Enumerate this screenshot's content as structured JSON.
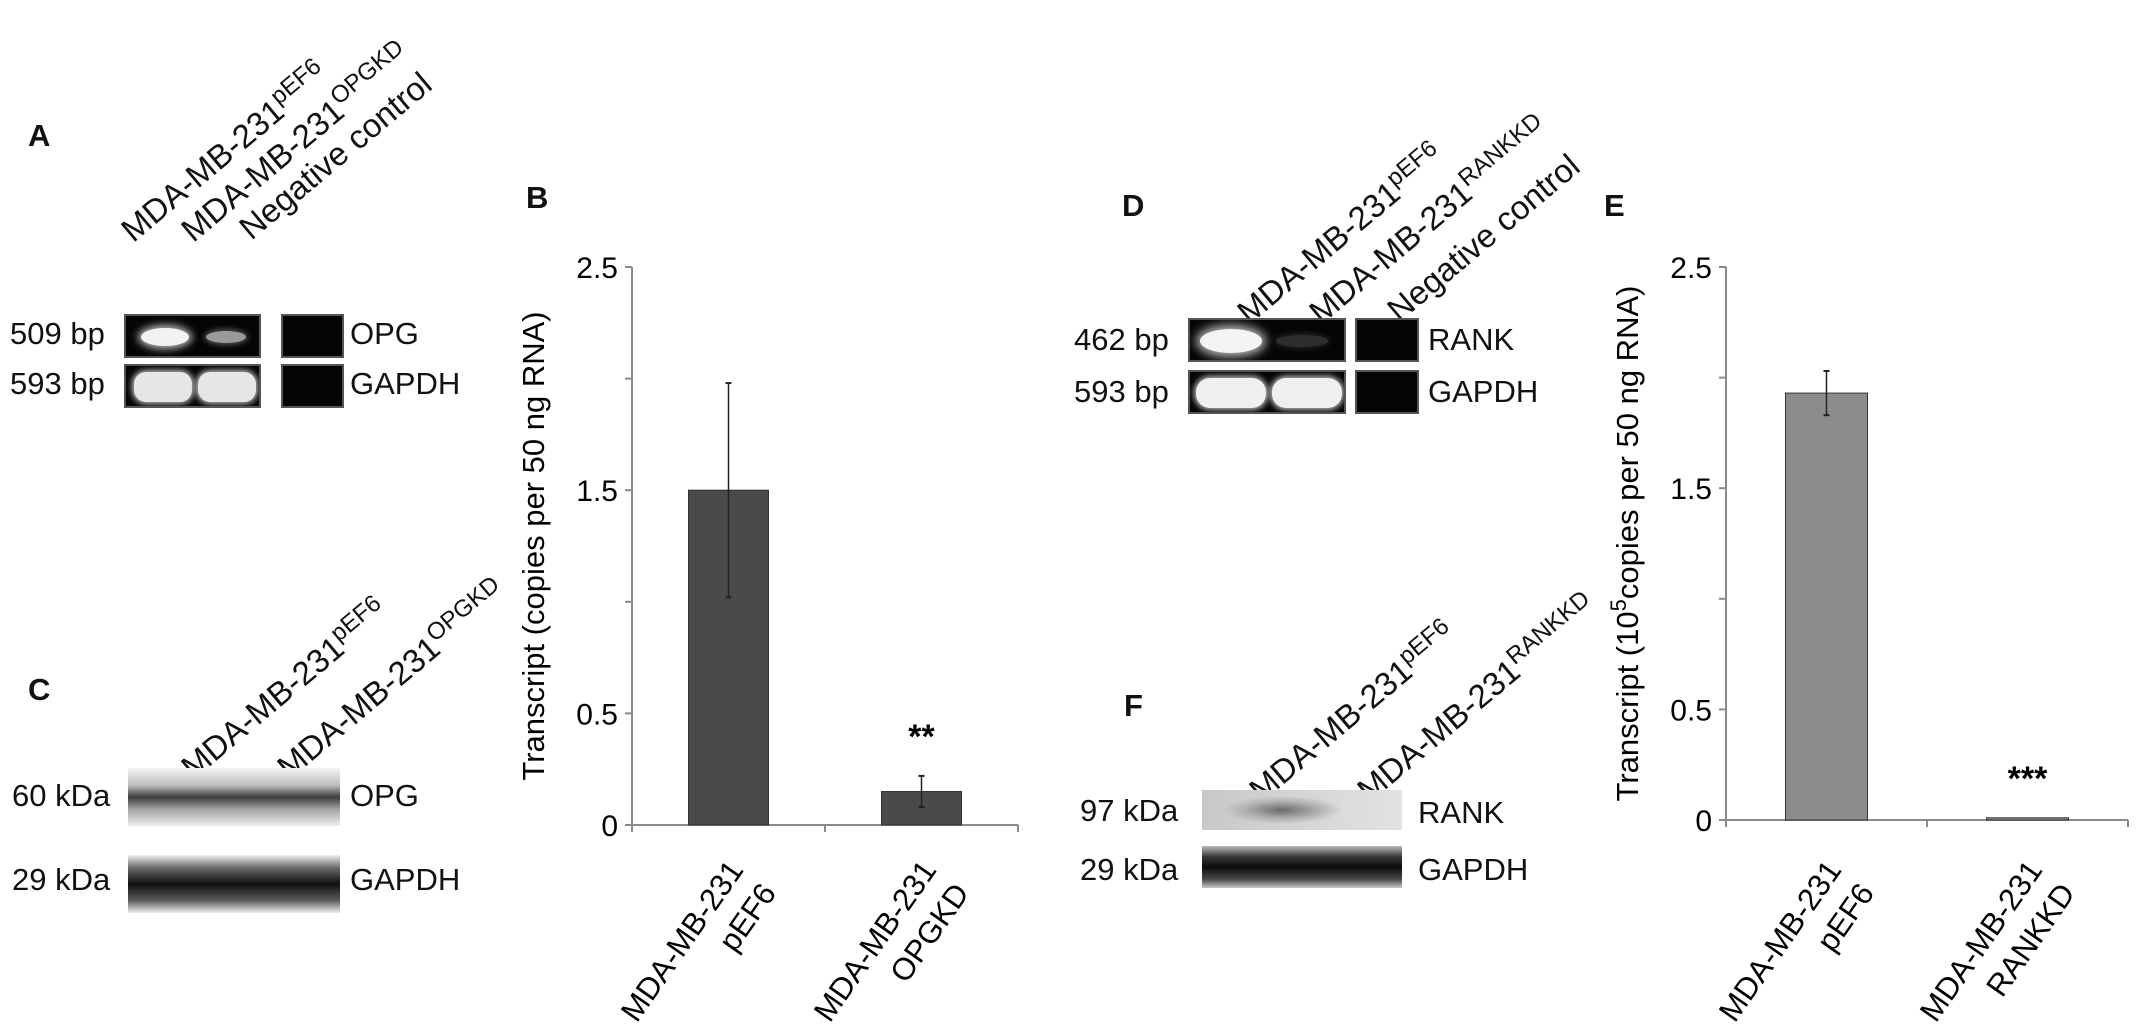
{
  "panels": {
    "A": {
      "label": "A",
      "lanes": [
        {
          "name": "MDA-MB-231",
          "sup": "pEF6"
        },
        {
          "name": "MDA-MB-231",
          "sup": "OPGKD"
        },
        {
          "name": "Negative  control",
          "sup": ""
        }
      ],
      "rows": [
        {
          "size": "509 bp",
          "gene": "OPG",
          "intensities": [
            0.9,
            0.35,
            0.05
          ]
        },
        {
          "size": "593 bp",
          "gene": "GAPDH",
          "intensities": [
            1.0,
            1.0,
            0.05
          ]
        }
      ]
    },
    "C": {
      "label": "C",
      "lanes": [
        {
          "name": "MDA-MB-231",
          "sup": "pEF6"
        },
        {
          "name": "MDA-MB-231",
          "sup": "OPGKD"
        }
      ],
      "rows": [
        {
          "size": "60 kDa",
          "gene": "OPG",
          "intensities": [
            0.75,
            0.6
          ]
        },
        {
          "size": "29 kDa",
          "gene": "GAPDH",
          "intensities": [
            0.95,
            0.95
          ]
        }
      ]
    },
    "D": {
      "label": "D",
      "lanes": [
        {
          "name": "MDA-MB-231",
          "sup": "pEF6"
        },
        {
          "name": "MDA-MB-231",
          "sup": "RANKKD"
        },
        {
          "name": "Negative  control",
          "sup": ""
        }
      ],
      "rows": [
        {
          "size": "462 bp",
          "gene": "RANK",
          "intensities": [
            0.95,
            0.25,
            0.05
          ]
        },
        {
          "size": "593 bp",
          "gene": "GAPDH",
          "intensities": [
            1.0,
            1.0,
            0.05
          ]
        }
      ]
    },
    "F": {
      "label": "F",
      "lanes": [
        {
          "name": "MDA-MB-231",
          "sup": "pEF6"
        },
        {
          "name": "MDA-MB-231",
          "sup": "RANKKD"
        }
      ],
      "rows": [
        {
          "size": "97 kDa",
          "gene": "RANK",
          "intensities": [
            0.5,
            0.15
          ]
        },
        {
          "size": "29 kDa",
          "gene": "GAPDH",
          "intensities": [
            0.95,
            0.95
          ]
        }
      ]
    }
  },
  "chart_data": [
    {
      "panel": "B",
      "type": "bar",
      "categories": [
        "MDA-MB-231 pEF6",
        "MDA-MB-231 OPGKD"
      ],
      "category_lines": [
        [
          "MDA-MB-231",
          "pEF6"
        ],
        [
          "MDA-MB-231",
          "OPGKD"
        ]
      ],
      "values": [
        1.5,
        0.15
      ],
      "errors": [
        0.48,
        0.07
      ],
      "significance": [
        "",
        "**"
      ],
      "ylabel": "Transcript (copies per 50  ng RNA)",
      "ylabel_sup": "",
      "ylim": [
        0,
        2.5
      ],
      "yticks": [
        "0",
        "0.5",
        "1.5",
        "2.5"
      ],
      "ytick_values": [
        0,
        0.5,
        1.5,
        2.5
      ],
      "minor_ticks": [
        1.0,
        2.0
      ],
      "bar_color": "#4a4a4a",
      "grid": false
    },
    {
      "panel": "E",
      "type": "bar",
      "categories": [
        "MDA-MB-231 pEF6",
        "MDA-MB-231 RANKKD"
      ],
      "category_lines": [
        [
          "MDA-MB-231",
          "pEF6"
        ],
        [
          "MDA-MB-231",
          "RANKKD"
        ]
      ],
      "values": [
        1.93,
        0.01
      ],
      "errors": [
        0.1,
        0.0
      ],
      "significance": [
        "",
        "***"
      ],
      "ylabel_pre": "Transcript (10",
      "ylabel_sup": "5",
      "ylabel_post": "copies per 50 ng RNA)",
      "ylim": [
        0,
        2.5
      ],
      "yticks": [
        "0",
        "0.5",
        "1.5",
        "2.5"
      ],
      "ytick_values": [
        0,
        0.5,
        1.5,
        2.5
      ],
      "minor_ticks": [
        1.0,
        2.0
      ],
      "bar_color": "#8c8c8c",
      "grid": false
    }
  ]
}
